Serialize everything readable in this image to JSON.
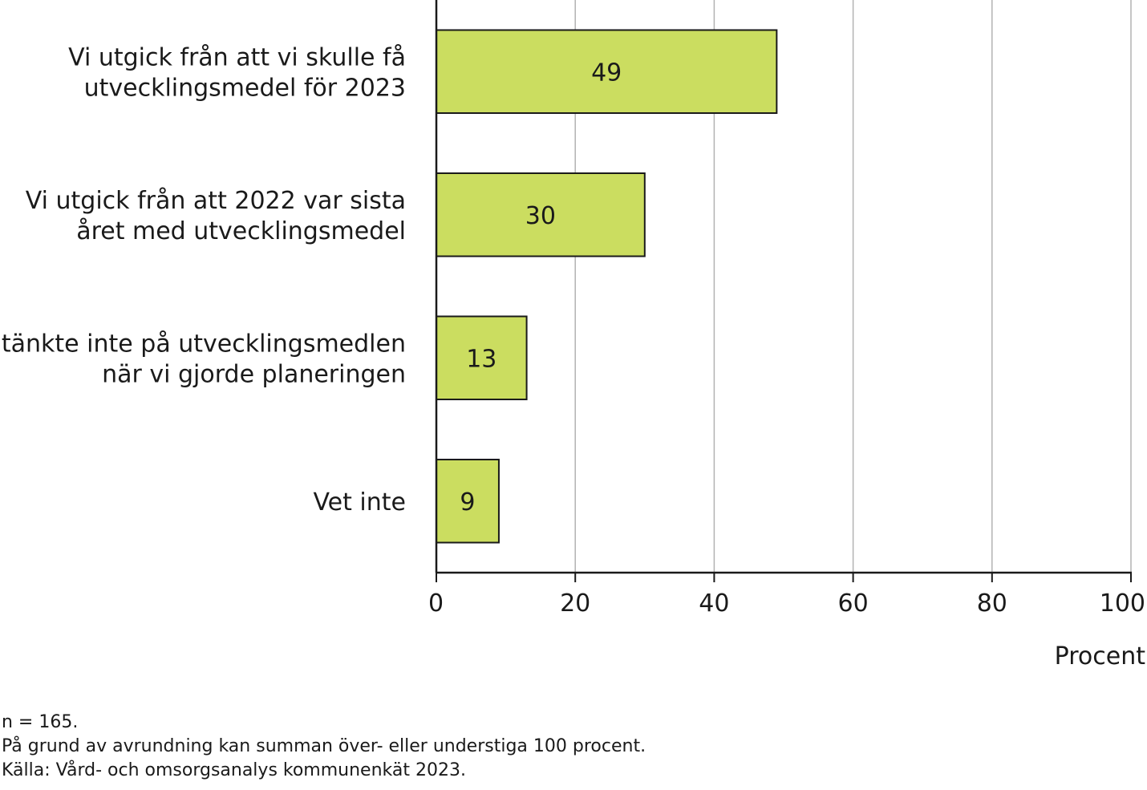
{
  "chart_data": {
    "type": "bar",
    "orientation": "horizontal",
    "categories": [
      [
        "Vi utgick från att vi skulle få",
        "utvecklingsmedel för 2023"
      ],
      [
        "Vi utgick från att 2022 var sista",
        "året med utvecklingsmedel"
      ],
      [
        "Vi tänkte inte på utvecklingsmedlen",
        "när vi gjorde planeringen"
      ],
      [
        "Vet inte"
      ]
    ],
    "values": [
      49,
      30,
      13,
      9
    ],
    "value_labels": [
      "49",
      "30",
      "13",
      "9"
    ],
    "xlabel": "Procent",
    "xlim": [
      0,
      100
    ],
    "xticks": [
      0,
      20,
      40,
      60,
      80,
      100
    ],
    "grid": "vertical",
    "bar_color": "#cbdd60",
    "bar_edge_color": "#1a1a1a",
    "grid_color": "#b3b3b3"
  },
  "notes": [
    "n = 165.",
    "På grund av avrundning kan summan över- eller understiga 100 procent.",
    "Källa: Vård- och omsorgsanalys kommunenkät 2023."
  ]
}
